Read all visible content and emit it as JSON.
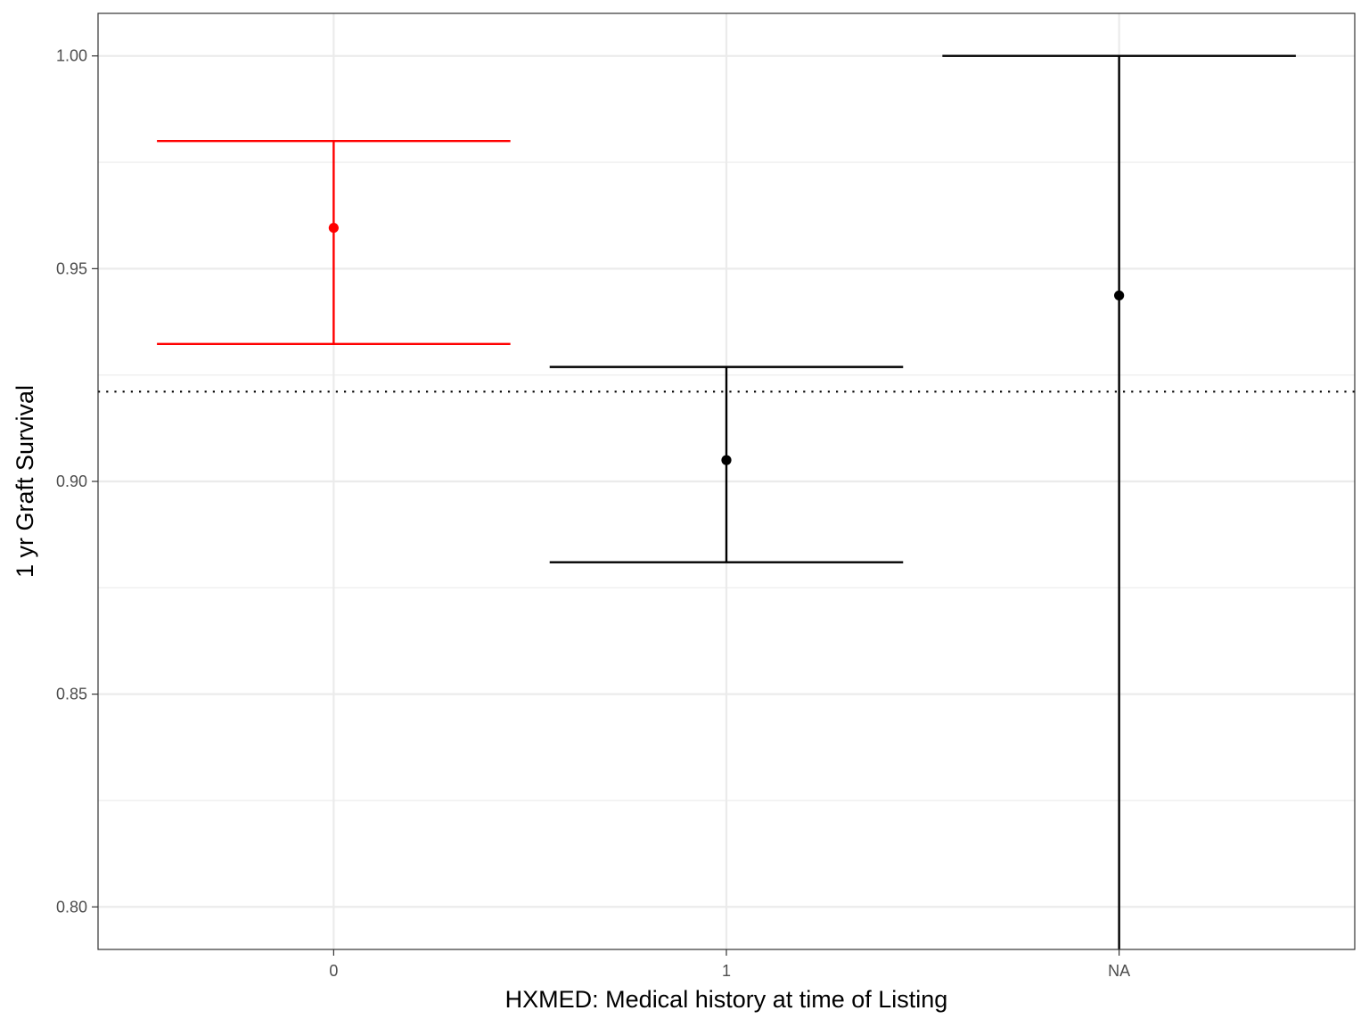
{
  "chart_data": {
    "type": "errorbar",
    "xlabel": "HXMED: Medical history at time of Listing",
    "ylabel": "1 yr Graft Survival",
    "categories": [
      "0",
      "1",
      "NA"
    ],
    "ylim": [
      0.79,
      1.01
    ],
    "yticks": [
      0.8,
      0.85,
      0.9,
      0.95,
      1.0
    ],
    "ytick_labels": [
      "0.80",
      "0.85",
      "0.90",
      "0.95",
      "1.00"
    ],
    "points": [
      {
        "category": "0",
        "estimate": 0.9596,
        "lower": 0.9323,
        "upper": 0.98,
        "color": "#ff0000"
      },
      {
        "category": "1",
        "estimate": 0.905,
        "lower": 0.881,
        "upper": 0.9269,
        "color": "#000000"
      },
      {
        "category": "NA",
        "estimate": 0.9437,
        "lower": 0.79,
        "upper": 1.0,
        "color": "#000000"
      }
    ],
    "reference_line": {
      "y": 0.9211,
      "style": "dotted"
    },
    "grid": true,
    "legend": "none"
  }
}
